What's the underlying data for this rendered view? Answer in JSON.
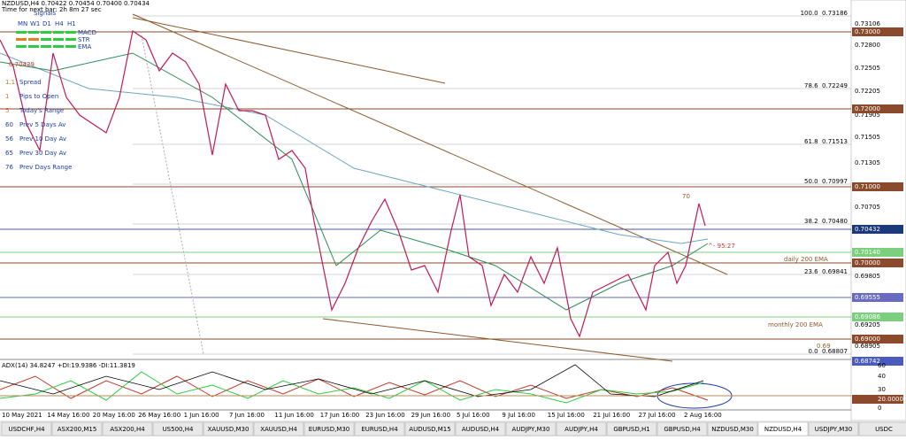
{
  "header": {
    "symbol_line": "NZDUSD,H4  0.70422 0.70454 0.70400 0.70434",
    "timer": "Time for next bar: 2h 8m 27 sec"
  },
  "signals": {
    "title": "Signals",
    "columns": [
      "MN",
      "W1",
      "D1",
      "H4",
      "H1"
    ],
    "rows": [
      "MACD",
      "STR",
      "EMA"
    ]
  },
  "price": "0.70429",
  "info": [
    [
      "1.1",
      "Spread"
    ],
    [
      "1",
      "Pips to Open"
    ],
    [
      "5",
      "Today's Range"
    ],
    [
      "60",
      "Prev 5 Days Av"
    ],
    [
      "56",
      "Prev 10 Day Av"
    ],
    [
      "65",
      "Prev 30 Day Av"
    ],
    [
      "76",
      "Prev Days Range"
    ]
  ],
  "price_axis": [
    "0.73106",
    "0.72800",
    "0.72505",
    "0.72205",
    "0.71905",
    "0.71505",
    "0.71305",
    "0.70705",
    "0.69805",
    "0.69205",
    "0.68905"
  ],
  "price_boxes": [
    "0.73000",
    "0.72000",
    "0.71000",
    "0.70432",
    "0.70140",
    "0.70000",
    "0.69555",
    "0.69086",
    "0.69000",
    "0.68742"
  ],
  "fib_labels": [
    "100.0  0.73186",
    "78.6  0.72249",
    "61.8  0.71513",
    "50.0  0.70997",
    "38.2  0.70480",
    "23.6  0.69841",
    "0.0  0.68807"
  ],
  "annotations": {
    "rsi": "70",
    "ratio": "^- 95:27",
    "daily_ema": "daily 200 EMA",
    "monthly_ema": "monthly 200 EMA",
    "level": "0.69"
  },
  "adx": {
    "title": "ADX(14) 34.8247 +DI:19.9386 -DI:11.3819",
    "axis": [
      "60",
      "40",
      "30",
      "20.0000",
      "0"
    ]
  },
  "dates": [
    "10 May 2021",
    "14 May 16:00",
    "20 May 16:00",
    "26 May 16:00",
    "1 Jun 16:00",
    "7 Jun 16:00",
    "11 Jun 16:00",
    "17 Jun 16:00",
    "23 Jun 16:00",
    "29 Jun 16:00",
    "5 Jul 16:00",
    "9 Jul 16:00",
    "15 Jul 16:00",
    "21 Jul 16:00",
    "27 Jul 16:00",
    "2 Aug 16:00"
  ],
  "tabs": [
    "USDCHF,H4",
    "ASX200,M15",
    "ASX200,H4",
    "US500,H4",
    "XAUUSD,M30",
    "XAUUSD,H4",
    "EURUSD,M30",
    "EURUSD,H4",
    "AUDUSD,M15",
    "AUDUSD,H4",
    "AUDJPY,M30",
    "AUDJPY,H4",
    "GBPUSD,H1",
    "GBPUSD,H4",
    "NZDUSD,M30",
    "NZDUSD,H4",
    "USDJPY,M30",
    "USDC"
  ],
  "active_tab": "NZDUSD,H4"
}
